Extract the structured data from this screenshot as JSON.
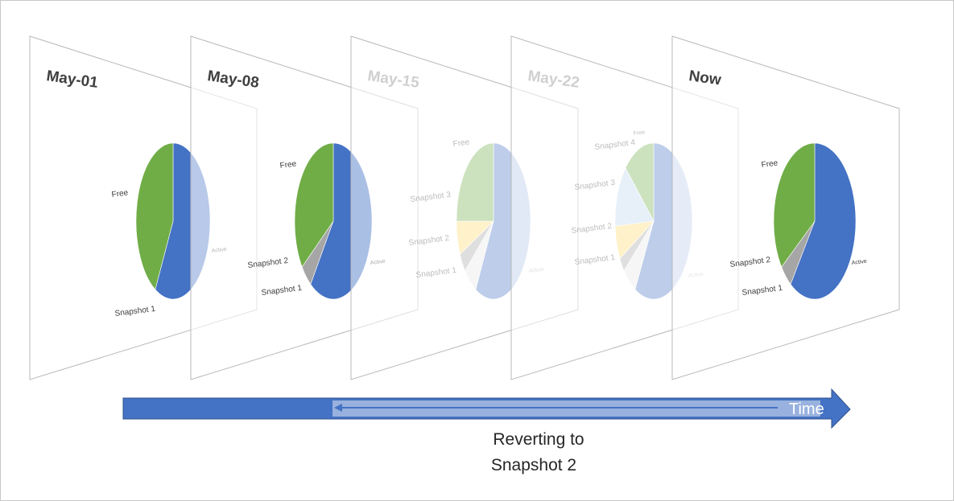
{
  "colors": {
    "active": "#4472c4",
    "free": "#70ad47",
    "snapshot_1": "#e8e8e8",
    "snapshot_2": "#a6a6a6",
    "snapshot_3": "#ffd966",
    "snapshot_4": "#bdd7ee",
    "timeline": "#4472c4",
    "frame_border": "#b8b8b8"
  },
  "frames": [
    {
      "title": "May-01",
      "faded": false,
      "labels": {
        "free": "Free",
        "active": "Active",
        "snapshot_1": "Snapshot 1"
      },
      "slices": {
        "active": 0.58,
        "free": 0.42
      }
    },
    {
      "title": "May-08",
      "faded": false,
      "labels": {
        "free": "Free",
        "active": "Active",
        "snapshot_2": "Snapshot 2",
        "snapshot_1": "Snapshot 1"
      },
      "slices": {
        "active": 0.6,
        "snapshot_2": 0.05,
        "free": 0.35
      }
    },
    {
      "title": "May-15",
      "faded": true,
      "labels": {
        "free": "Free",
        "active": "Active",
        "snapshot_3": "Snapshot 3",
        "snapshot_2": "Snapshot 2",
        "snapshot_1": "Snapshot 1"
      },
      "slices": {
        "active": 0.58,
        "snapshot_1": 0.06,
        "snapshot_2": 0.04,
        "snapshot_3": 0.07,
        "free": 0.25
      }
    },
    {
      "title": "May-22",
      "faded": true,
      "labels": {
        "free": "Free",
        "active": "Active",
        "snapshot_4": "Snapshot 4",
        "snapshot_3": "Snapshot 3",
        "snapshot_2": "Snapshot 2",
        "snapshot_1": "Snapshot 1"
      },
      "slices": {
        "active": 0.58,
        "snapshot_1": 0.06,
        "snapshot_2": 0.03,
        "snapshot_3": 0.07,
        "snapshot_4": 0.13,
        "free": 0.13
      }
    },
    {
      "title": "Now",
      "faded": false,
      "labels": {
        "free": "Free",
        "active": "Active",
        "snapshot_2": "Snapshot 2",
        "snapshot_1": "Snapshot 1"
      },
      "slices": {
        "active": 0.6,
        "snapshot_2": 0.05,
        "free": 0.35
      }
    }
  ],
  "timeline": {
    "label": "Time",
    "caption_line1": "Reverting to",
    "caption_line2": "Snapshot 2"
  }
}
